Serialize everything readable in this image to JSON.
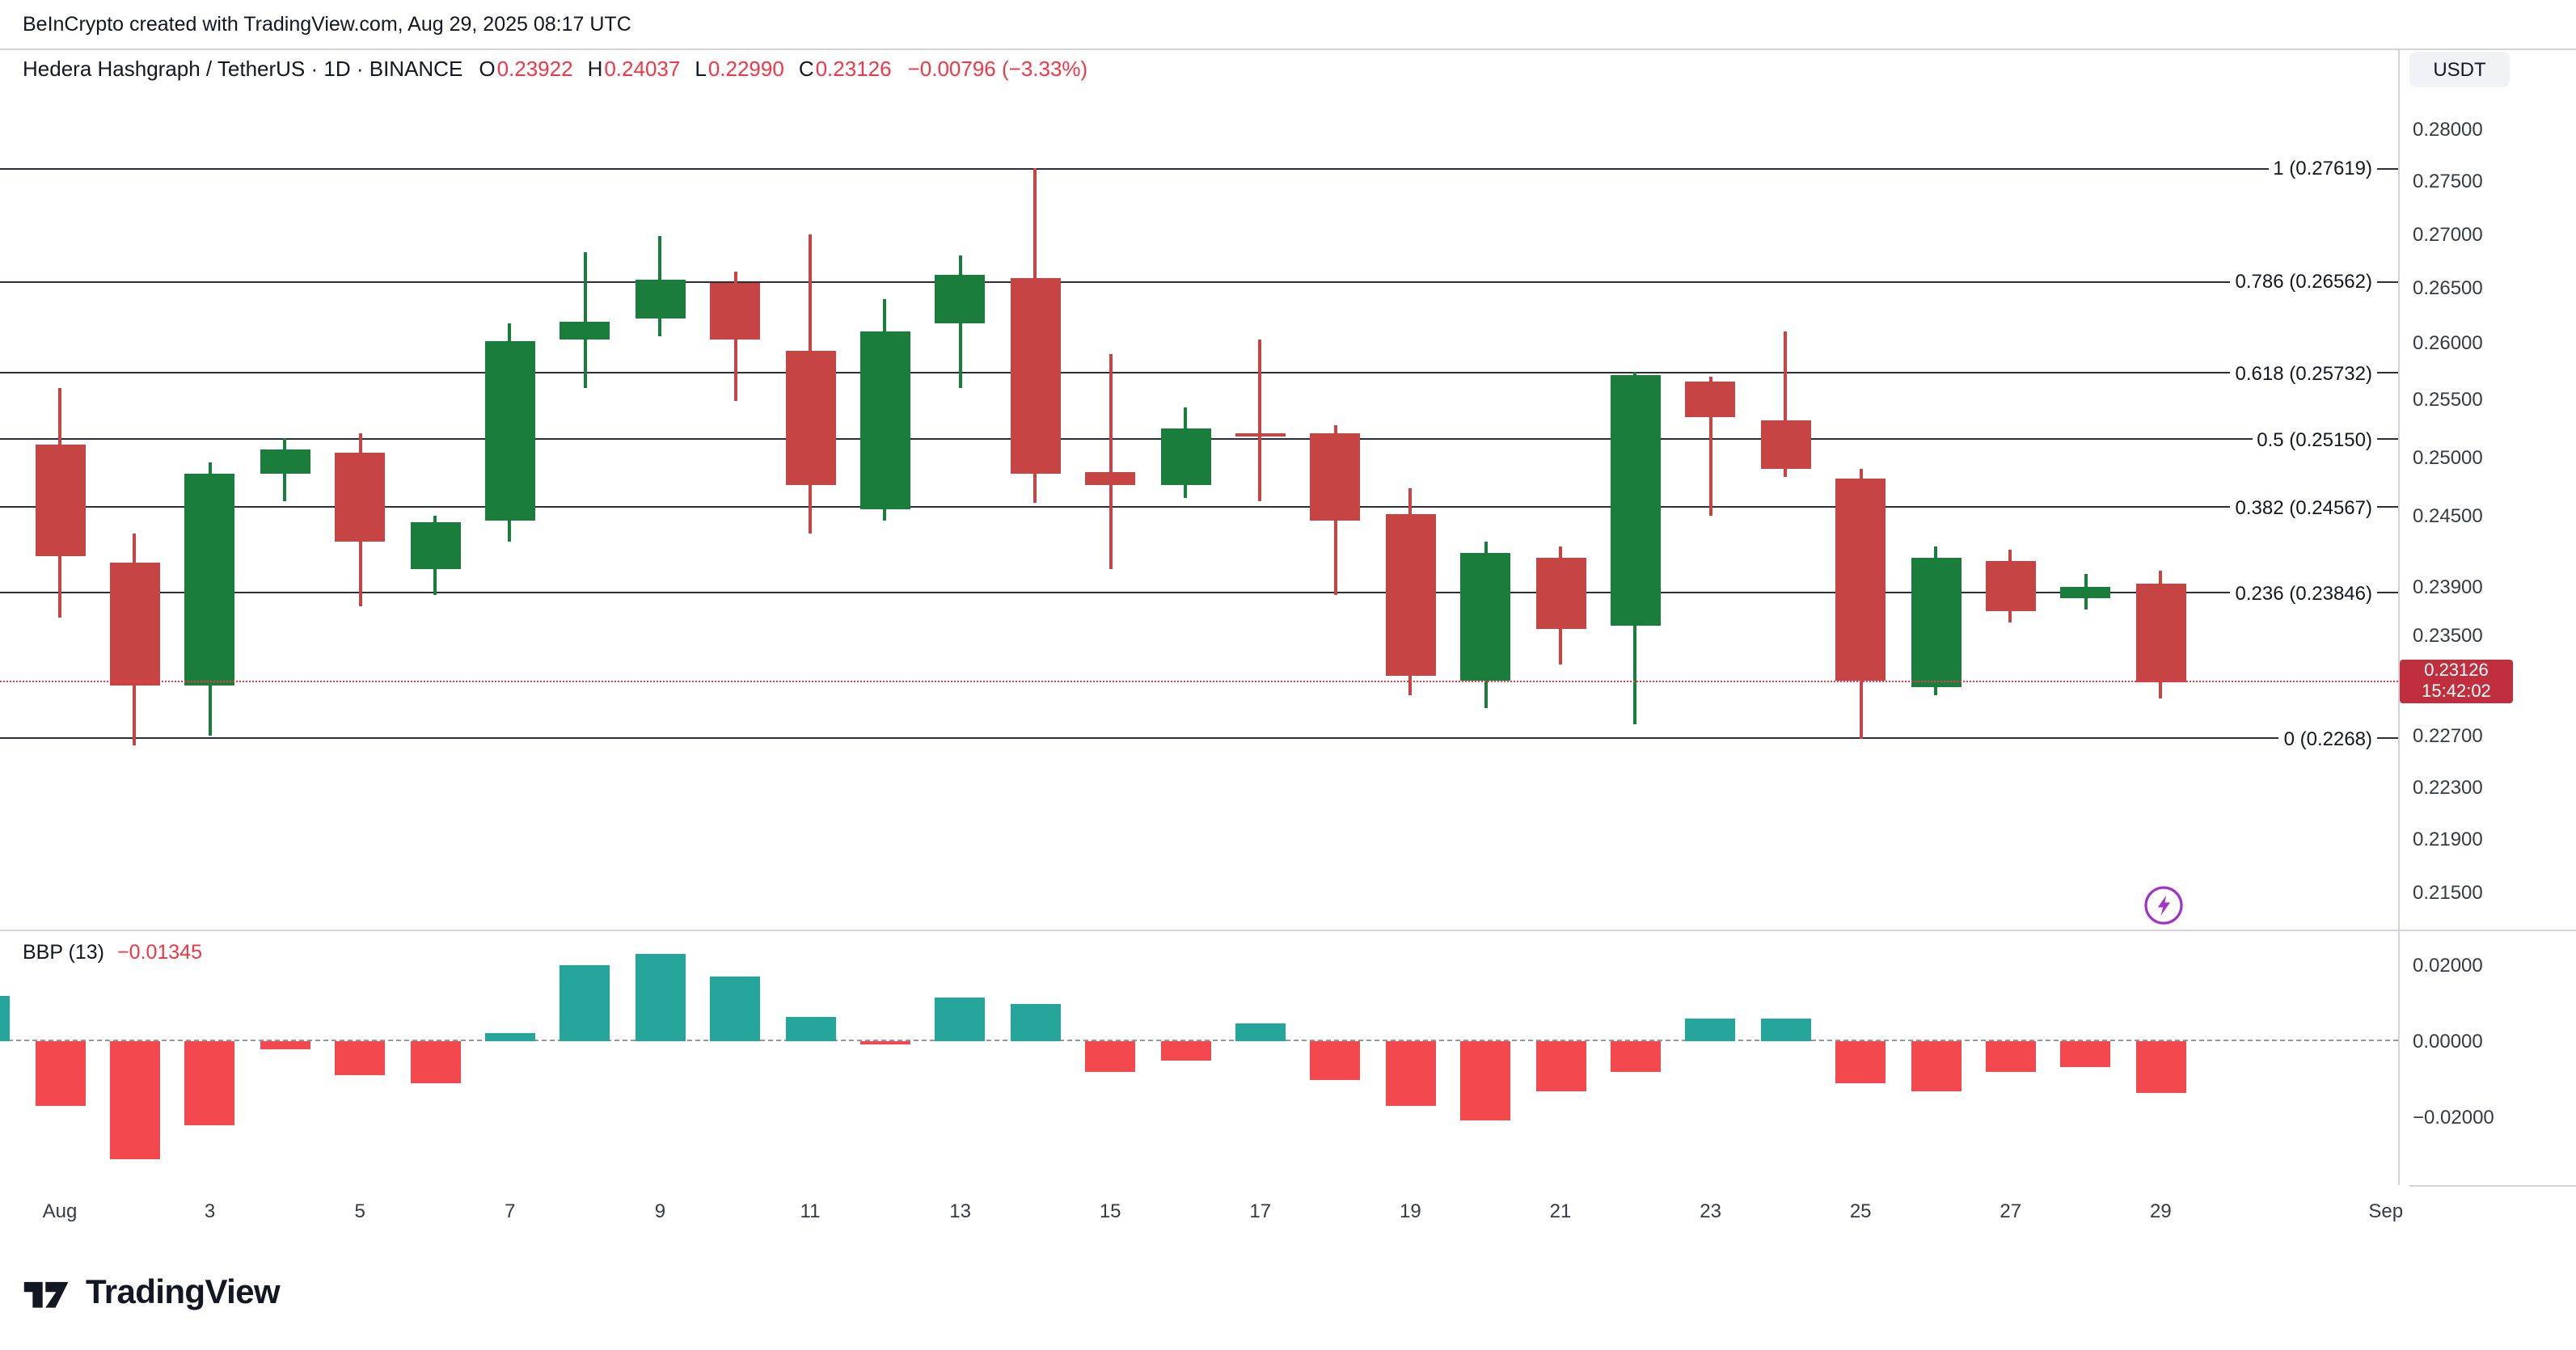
{
  "attribution": "BeInCrypto created with TradingView.com, Aug 29, 2025 08:17 UTC",
  "symbol_bar": {
    "title": "Hedera Hashgraph / TetherUS · 1D · BINANCE",
    "ohlc": [
      {
        "label": "O",
        "value": "0.23922"
      },
      {
        "label": "H",
        "value": "0.24037"
      },
      {
        "label": "L",
        "value": "0.22990"
      },
      {
        "label": "C",
        "value": "0.23126"
      }
    ],
    "change": "−0.00796 (−3.33%)",
    "currency_button": "USDT"
  },
  "price_axis": {
    "ticks": [
      "0.28000",
      "0.27500",
      "0.27000",
      "0.26500",
      "0.26000",
      "0.25500",
      "0.25000",
      "0.24500",
      "0.23900",
      "0.23500",
      "0.22700",
      "0.22300",
      "0.21900",
      "0.21500"
    ]
  },
  "fib_levels": [
    {
      "label": "1 (0.27619)",
      "value": 0.27619
    },
    {
      "label": "0.786 (0.26562)",
      "value": 0.26562
    },
    {
      "label": "0.618 (0.25732)",
      "value": 0.25732
    },
    {
      "label": "0.5 (0.25150)",
      "value": 0.2515
    },
    {
      "label": "0.382 (0.24567)",
      "value": 0.24567
    },
    {
      "label": "0.236 (0.23846)",
      "value": 0.23846
    },
    {
      "label": "0 (0.2268)",
      "value": 0.2268
    }
  ],
  "last_price": {
    "value": "0.23126",
    "countdown": "15:42:02",
    "numeric": 0.23126
  },
  "indicator_pane": {
    "label": "BBP (13)",
    "value": "−0.01345",
    "axis_ticks": [
      {
        "label": "0.02000",
        "v": 0.02
      },
      {
        "label": "0.00000",
        "v": 0
      },
      {
        "label": "−0.02000",
        "v": -0.02
      }
    ]
  },
  "time_axis": [
    {
      "label": "Aug",
      "day": 1
    },
    {
      "label": "3",
      "day": 3
    },
    {
      "label": "5",
      "day": 5
    },
    {
      "label": "7",
      "day": 7
    },
    {
      "label": "9",
      "day": 9
    },
    {
      "label": "11",
      "day": 11
    },
    {
      "label": "13",
      "day": 13
    },
    {
      "label": "15",
      "day": 15
    },
    {
      "label": "17",
      "day": 17
    },
    {
      "label": "19",
      "day": 19
    },
    {
      "label": "21",
      "day": 21
    },
    {
      "label": "23",
      "day": 23
    },
    {
      "label": "25",
      "day": 25
    },
    {
      "label": "27",
      "day": 27
    },
    {
      "label": "29",
      "day": 29
    },
    {
      "label": "Sep",
      "day": 32
    }
  ],
  "footer": {
    "brand": "TradingView"
  },
  "colors": {
    "candle_up": "#1a7d3b",
    "candle_down": "#c64444",
    "bbp_up": "#26a69a",
    "bbp_down": "#f4484f",
    "accent_red": "#f23645",
    "badge_bg": "#bf2f3e",
    "fib_line": "#2a2e39",
    "boost_purple": "#a333c8"
  },
  "chart_data": {
    "type": "candlestick",
    "title": "Hedera Hashgraph / TetherUS, 1D, BINANCE",
    "x_axis": "Date (August 2025)",
    "y_axis": "Price (USDT)",
    "y_scale": "log",
    "y_range": [
      0.215,
      0.2825
    ],
    "candles": [
      {
        "day": 1,
        "o": 0.251,
        "h": 0.256,
        "l": 0.2365,
        "c": 0.2415
      },
      {
        "day": 2,
        "o": 0.241,
        "h": 0.2435,
        "l": 0.2262,
        "c": 0.231
      },
      {
        "day": 3,
        "o": 0.231,
        "h": 0.2495,
        "l": 0.227,
        "c": 0.2485
      },
      {
        "day": 4,
        "o": 0.2485,
        "h": 0.2516,
        "l": 0.2462,
        "c": 0.2507
      },
      {
        "day": 5,
        "o": 0.2504,
        "h": 0.2521,
        "l": 0.2374,
        "c": 0.2428
      },
      {
        "day": 6,
        "o": 0.2405,
        "h": 0.245,
        "l": 0.2383,
        "c": 0.2444
      },
      {
        "day": 7,
        "o": 0.2446,
        "h": 0.2618,
        "l": 0.2428,
        "c": 0.2602
      },
      {
        "day": 8,
        "o": 0.2604,
        "h": 0.2683,
        "l": 0.256,
        "c": 0.262
      },
      {
        "day": 9,
        "o": 0.2623,
        "h": 0.2698,
        "l": 0.2607,
        "c": 0.2658
      },
      {
        "day": 10,
        "o": 0.2655,
        "h": 0.2666,
        "l": 0.2549,
        "c": 0.2604
      },
      {
        "day": 11,
        "o": 0.2593,
        "h": 0.27,
        "l": 0.2434,
        "c": 0.2475
      },
      {
        "day": 12,
        "o": 0.2455,
        "h": 0.264,
        "l": 0.2446,
        "c": 0.2611
      },
      {
        "day": 13,
        "o": 0.2618,
        "h": 0.268,
        "l": 0.256,
        "c": 0.2662
      },
      {
        "day": 14,
        "o": 0.2659,
        "h": 0.2762,
        "l": 0.246,
        "c": 0.2486
      },
      {
        "day": 15,
        "o": 0.2487,
        "h": 0.259,
        "l": 0.2405,
        "c": 0.2476
      },
      {
        "day": 16,
        "o": 0.2475,
        "h": 0.2543,
        "l": 0.2464,
        "c": 0.2524
      },
      {
        "day": 17,
        "o": 0.2521,
        "h": 0.2603,
        "l": 0.2462,
        "c": 0.2517
      },
      {
        "day": 18,
        "o": 0.2521,
        "h": 0.2528,
        "l": 0.2383,
        "c": 0.2446
      },
      {
        "day": 19,
        "o": 0.2451,
        "h": 0.2473,
        "l": 0.2302,
        "c": 0.2317
      },
      {
        "day": 20,
        "o": 0.2314,
        "h": 0.2428,
        "l": 0.2292,
        "c": 0.2418
      },
      {
        "day": 21,
        "o": 0.2414,
        "h": 0.2424,
        "l": 0.2327,
        "c": 0.2355
      },
      {
        "day": 22,
        "o": 0.2358,
        "h": 0.2575,
        "l": 0.2279,
        "c": 0.2572
      },
      {
        "day": 23,
        "o": 0.2566,
        "h": 0.257,
        "l": 0.245,
        "c": 0.2534
      },
      {
        "day": 24,
        "o": 0.2531,
        "h": 0.2611,
        "l": 0.2482,
        "c": 0.2489
      },
      {
        "day": 25,
        "o": 0.2481,
        "h": 0.2489,
        "l": 0.2267,
        "c": 0.2314
      },
      {
        "day": 26,
        "o": 0.2308,
        "h": 0.2424,
        "l": 0.2302,
        "c": 0.2414
      },
      {
        "day": 27,
        "o": 0.2411,
        "h": 0.2421,
        "l": 0.2361,
        "c": 0.237
      },
      {
        "day": 28,
        "o": 0.238,
        "h": 0.2401,
        "l": 0.2371,
        "c": 0.239
      },
      {
        "day": 29,
        "o": 0.23922,
        "h": 0.24037,
        "l": 0.2299,
        "c": 0.23126
      }
    ],
    "indicator": {
      "name": "BBP (13)",
      "type": "bar",
      "last_value": -0.01345,
      "y_range": [
        -0.033,
        0.028
      ],
      "values": [
        {
          "day": 0,
          "v": 0.012
        },
        {
          "day": 1,
          "v": -0.017
        },
        {
          "day": 2,
          "v": -0.031
        },
        {
          "day": 3,
          "v": -0.022
        },
        {
          "day": 4,
          "v": -0.002
        },
        {
          "day": 5,
          "v": -0.009
        },
        {
          "day": 6,
          "v": -0.011
        },
        {
          "day": 7,
          "v": 0.002
        },
        {
          "day": 8,
          "v": 0.02
        },
        {
          "day": 9,
          "v": 0.023
        },
        {
          "day": 10,
          "v": 0.017
        },
        {
          "day": 11,
          "v": 0.0065
        },
        {
          "day": 12,
          "v": -0.001
        },
        {
          "day": 13,
          "v": 0.0115
        },
        {
          "day": 14,
          "v": 0.01
        },
        {
          "day": 15,
          "v": -0.008
        },
        {
          "day": 16,
          "v": -0.005
        },
        {
          "day": 17,
          "v": 0.0045
        },
        {
          "day": 18,
          "v": -0.01
        },
        {
          "day": 19,
          "v": -0.017
        },
        {
          "day": 20,
          "v": -0.021
        },
        {
          "day": 21,
          "v": -0.013
        },
        {
          "day": 22,
          "v": -0.008
        },
        {
          "day": 23,
          "v": 0.006
        },
        {
          "day": 24,
          "v": 0.006
        },
        {
          "day": 25,
          "v": -0.011
        },
        {
          "day": 26,
          "v": -0.013
        },
        {
          "day": 27,
          "v": -0.008
        },
        {
          "day": 28,
          "v": -0.007
        },
        {
          "day": 29,
          "v": -0.01345
        }
      ]
    }
  }
}
